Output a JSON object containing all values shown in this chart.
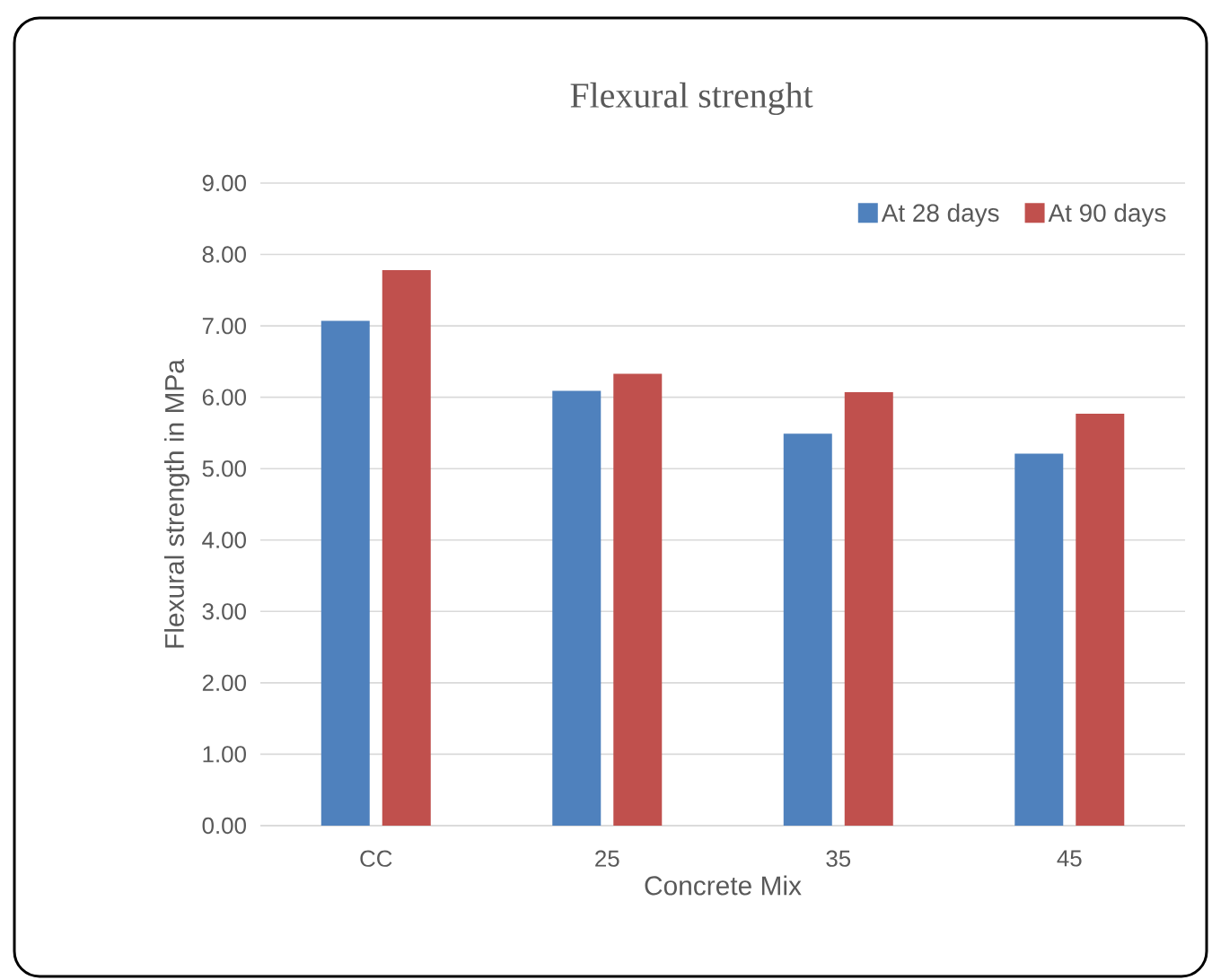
{
  "chart_data": {
    "type": "bar",
    "title": "Flexural strenght",
    "xlabel": "Concrete Mix",
    "ylabel": "Flexural strength  in MPa",
    "categories": [
      "CC",
      "25",
      "35",
      "45"
    ],
    "series": [
      {
        "name": "At 28 days",
        "color": "#4f81bd",
        "values": [
          7.07,
          6.09,
          5.49,
          5.21
        ]
      },
      {
        "name": "At 90 days",
        "color": "#c0504d",
        "values": [
          7.78,
          6.33,
          6.07,
          5.77
        ]
      }
    ],
    "ylim": [
      0,
      9
    ],
    "yticks": [
      {
        "value": 0,
        "label": "0.00"
      },
      {
        "value": 1,
        "label": "1.00"
      },
      {
        "value": 2,
        "label": "2.00"
      },
      {
        "value": 3,
        "label": "3.00"
      },
      {
        "value": 4,
        "label": "4.00"
      },
      {
        "value": 5,
        "label": "5.00"
      },
      {
        "value": 6,
        "label": "6.00"
      },
      {
        "value": 7,
        "label": "7.00"
      },
      {
        "value": 8,
        "label": "8.00"
      },
      {
        "value": 9,
        "label": "9.00"
      }
    ],
    "grid": "y",
    "legend": "top right"
  }
}
